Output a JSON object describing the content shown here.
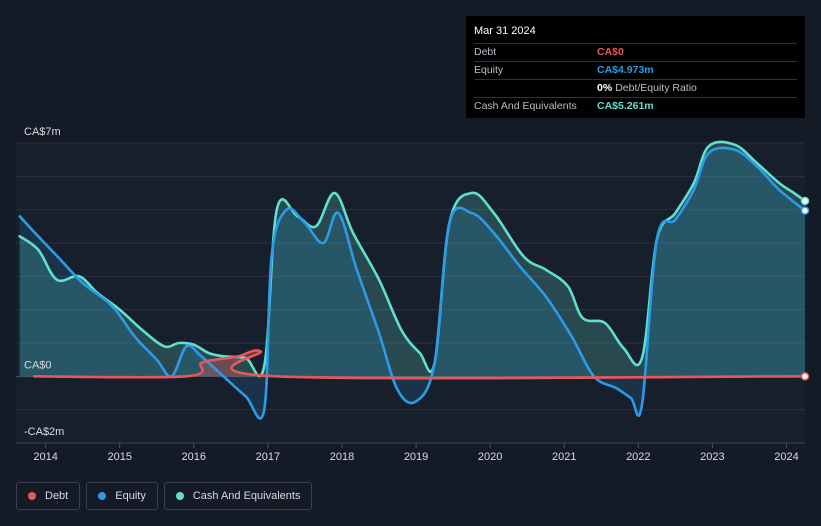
{
  "tooltip": {
    "date": "Mar 31 2024",
    "rows": [
      {
        "label": "Debt",
        "value": "CA$0",
        "color": "#e8575b",
        "sub": ""
      },
      {
        "label": "Equity",
        "value": "CA$4.973m",
        "color": "#2b9be8",
        "sub": ""
      },
      {
        "label": "",
        "value": "0%",
        "color": "#ffffff",
        "sub": "Debt/Equity Ratio"
      },
      {
        "label": "Cash And Equivalents",
        "value": "CA$5.261m",
        "color": "#5fe0cd",
        "sub": ""
      }
    ]
  },
  "legend": {
    "debt": "Debt",
    "equity": "Equity",
    "cash": "Cash And Equivalents"
  },
  "colors": {
    "debt": "#e8575b",
    "equity": "#2b9be8",
    "cash": "#5fe0cd",
    "background": "#151b26"
  },
  "chart_data": {
    "type": "line",
    "title": "",
    "xlabel": "",
    "ylabel": "",
    "y_tick_labels": [
      {
        "value": 7,
        "label": "CA$7m"
      },
      {
        "value": 0,
        "label": "CA$0"
      },
      {
        "value": -2,
        "label": "-CA$2m"
      }
    ],
    "ylim": [
      -2,
      7
    ],
    "xlim": [
      2013.6,
      2024.25
    ],
    "x_ticks": [
      2014,
      2015,
      2016,
      2017,
      2018,
      2019,
      2020,
      2021,
      2022,
      2023,
      2024
    ],
    "x_tick_labels": [
      "2014",
      "2015",
      "2016",
      "2017",
      "2018",
      "2019",
      "2020",
      "2021",
      "2022",
      "2023",
      "2024"
    ],
    "legend_position": "bottom-left",
    "series": [
      {
        "name": "Debt",
        "key": "debt",
        "points": [
          [
            2013.85,
            0
          ],
          [
            2015.9,
            0
          ],
          [
            2016.1,
            0.4
          ],
          [
            2016.3,
            0.5
          ],
          [
            2016.6,
            0.6
          ],
          [
            2016.9,
            0.75
          ],
          [
            2017.1,
            0
          ],
          [
            2024.25,
            0
          ]
        ]
      },
      {
        "name": "Equity",
        "key": "equity",
        "points": [
          [
            2013.65,
            4.8
          ],
          [
            2013.9,
            4.2
          ],
          [
            2014.2,
            3.5
          ],
          [
            2014.5,
            2.8
          ],
          [
            2014.9,
            2.1
          ],
          [
            2015.2,
            1.2
          ],
          [
            2015.5,
            0.5
          ],
          [
            2015.7,
            0.0
          ],
          [
            2015.9,
            0.9
          ],
          [
            2016.1,
            0.6
          ],
          [
            2016.4,
            0.0
          ],
          [
            2016.7,
            -0.6
          ],
          [
            2016.95,
            -1.0
          ],
          [
            2017.05,
            3.6
          ],
          [
            2017.25,
            5.0
          ],
          [
            2017.5,
            4.6
          ],
          [
            2017.75,
            4.0
          ],
          [
            2017.95,
            4.9
          ],
          [
            2018.2,
            3.2
          ],
          [
            2018.5,
            1.3
          ],
          [
            2018.75,
            -0.4
          ],
          [
            2019.0,
            -0.75
          ],
          [
            2019.25,
            0.4
          ],
          [
            2019.45,
            4.6
          ],
          [
            2019.75,
            4.9
          ],
          [
            2020.05,
            4.3
          ],
          [
            2020.4,
            3.3
          ],
          [
            2020.75,
            2.4
          ],
          [
            2021.1,
            1.2
          ],
          [
            2021.4,
            0.0
          ],
          [
            2021.7,
            -0.35
          ],
          [
            2021.9,
            -0.65
          ],
          [
            2022.05,
            -0.85
          ],
          [
            2022.25,
            4.1
          ],
          [
            2022.5,
            4.7
          ],
          [
            2022.75,
            5.6
          ],
          [
            2022.95,
            6.7
          ],
          [
            2023.3,
            6.8
          ],
          [
            2023.6,
            6.3
          ],
          [
            2023.9,
            5.6
          ],
          [
            2024.25,
            4.973
          ]
        ]
      },
      {
        "name": "Cash And Equivalents",
        "key": "cash",
        "points": [
          [
            2013.65,
            4.2
          ],
          [
            2013.9,
            3.8
          ],
          [
            2014.15,
            2.9
          ],
          [
            2014.45,
            3.0
          ],
          [
            2014.7,
            2.5
          ],
          [
            2015.0,
            2.0
          ],
          [
            2015.3,
            1.4
          ],
          [
            2015.6,
            0.9
          ],
          [
            2015.8,
            1.0
          ],
          [
            2016.0,
            0.95
          ],
          [
            2016.2,
            0.7
          ],
          [
            2016.4,
            0.6
          ],
          [
            2016.7,
            0.55
          ],
          [
            2016.95,
            0.3
          ],
          [
            2017.12,
            5.0
          ],
          [
            2017.4,
            4.8
          ],
          [
            2017.65,
            4.5
          ],
          [
            2017.9,
            5.5
          ],
          [
            2018.15,
            4.3
          ],
          [
            2018.5,
            2.9
          ],
          [
            2018.8,
            1.4
          ],
          [
            2019.05,
            0.7
          ],
          [
            2019.25,
            0.4
          ],
          [
            2019.45,
            4.6
          ],
          [
            2019.75,
            5.5
          ],
          [
            2020.05,
            4.9
          ],
          [
            2020.45,
            3.6
          ],
          [
            2020.75,
            3.2
          ],
          [
            2021.05,
            2.7
          ],
          [
            2021.25,
            1.75
          ],
          [
            2021.55,
            1.6
          ],
          [
            2021.8,
            0.85
          ],
          [
            2022.05,
            0.55
          ],
          [
            2022.25,
            4.1
          ],
          [
            2022.5,
            4.9
          ],
          [
            2022.75,
            5.8
          ],
          [
            2022.95,
            6.9
          ],
          [
            2023.3,
            6.95
          ],
          [
            2023.6,
            6.4
          ],
          [
            2023.9,
            5.8
          ],
          [
            2024.1,
            5.5
          ],
          [
            2024.25,
            5.261
          ]
        ]
      }
    ]
  }
}
